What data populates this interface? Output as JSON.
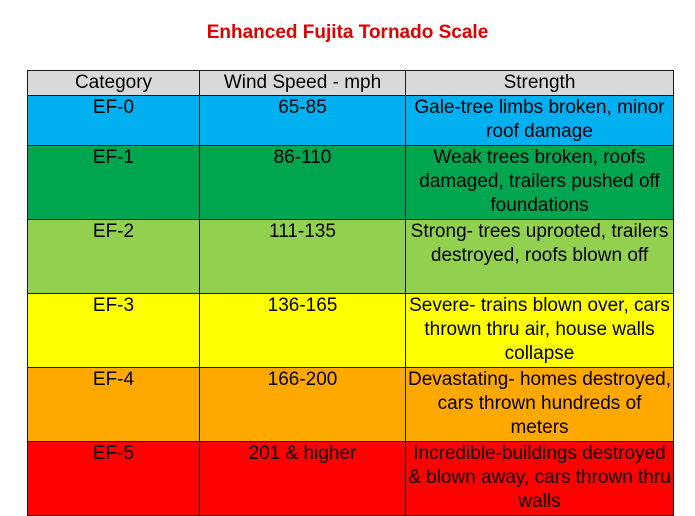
{
  "title": "Enhanced Fujita Tornado Scale",
  "table": {
    "headers": [
      "Category",
      "Wind Speed - mph",
      "Strength"
    ],
    "rows": [
      {
        "category": "EF-0",
        "wind_speed": "65-85",
        "strength": "Gale-tree limbs broken, minor roof damage",
        "color": "#00b0f0"
      },
      {
        "category": "EF-1",
        "wind_speed": "86-110",
        "strength": "Weak trees broken, roofs damaged, trailers pushed off foundations",
        "color": "#00a550"
      },
      {
        "category": "EF-2",
        "wind_speed": "111-135",
        "strength": "Strong- trees uprooted, trailers destroyed, roofs blown off",
        "color": "#92d050"
      },
      {
        "category": "EF-3",
        "wind_speed": "136-165",
        "strength": "Severe- trains blown over, cars thrown thru air, house walls collapse",
        "color": "#ffff00"
      },
      {
        "category": "EF-4",
        "wind_speed": "166-200",
        "strength": "Devastating- homes destroyed, cars thrown hundreds of meters",
        "color": "#ffa800"
      },
      {
        "category": "EF-5",
        "wind_speed": "201 & higher",
        "strength": "Incredible-buildings destroyed & blown away, cars thrown thru walls",
        "color": "#ff0000"
      }
    ]
  }
}
